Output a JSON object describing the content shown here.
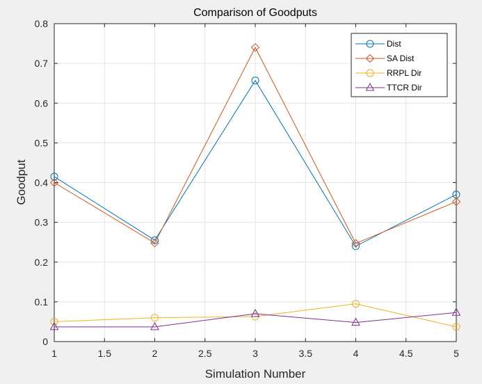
{
  "chart_data": {
    "type": "line",
    "title": "Comparison of Goodputs",
    "xlabel": "Simulation Number",
    "ylabel": "Goodput",
    "x": [
      1,
      2,
      3,
      4,
      5
    ],
    "xlim": [
      1,
      5
    ],
    "ylim": [
      0,
      0.8
    ],
    "xticks": [
      1,
      1.5,
      2,
      2.5,
      3,
      3.5,
      4,
      4.5,
      5
    ],
    "xtick_labels": [
      "1",
      "1.5",
      "2",
      "2.5",
      "3",
      "3.5",
      "4",
      "4.5",
      "5"
    ],
    "yticks": [
      0,
      0.1,
      0.2,
      0.3,
      0.4,
      0.5,
      0.6,
      0.7,
      0.8
    ],
    "ytick_labels": [
      "0",
      "0.1",
      "0.2",
      "0.3",
      "0.4",
      "0.5",
      "0.6",
      "0.7",
      "0.8"
    ],
    "grid": true,
    "legend_position": "top-right",
    "series": [
      {
        "name": "Dist",
        "values": [
          0.415,
          0.255,
          0.657,
          0.24,
          0.37
        ],
        "color": "#0072bd",
        "marker": "circle"
      },
      {
        "name": "SA Dist",
        "values": [
          0.4,
          0.248,
          0.74,
          0.247,
          0.352
        ],
        "color": "#d95319",
        "marker": "diamond"
      },
      {
        "name": "RRPL Dir",
        "values": [
          0.05,
          0.06,
          0.063,
          0.095,
          0.037
        ],
        "color": "#edb120",
        "marker": "circle"
      },
      {
        "name": "TTCR Dir",
        "values": [
          0.037,
          0.037,
          0.07,
          0.048,
          0.073
        ],
        "color": "#7e2f8e",
        "marker": "triangle"
      }
    ]
  }
}
